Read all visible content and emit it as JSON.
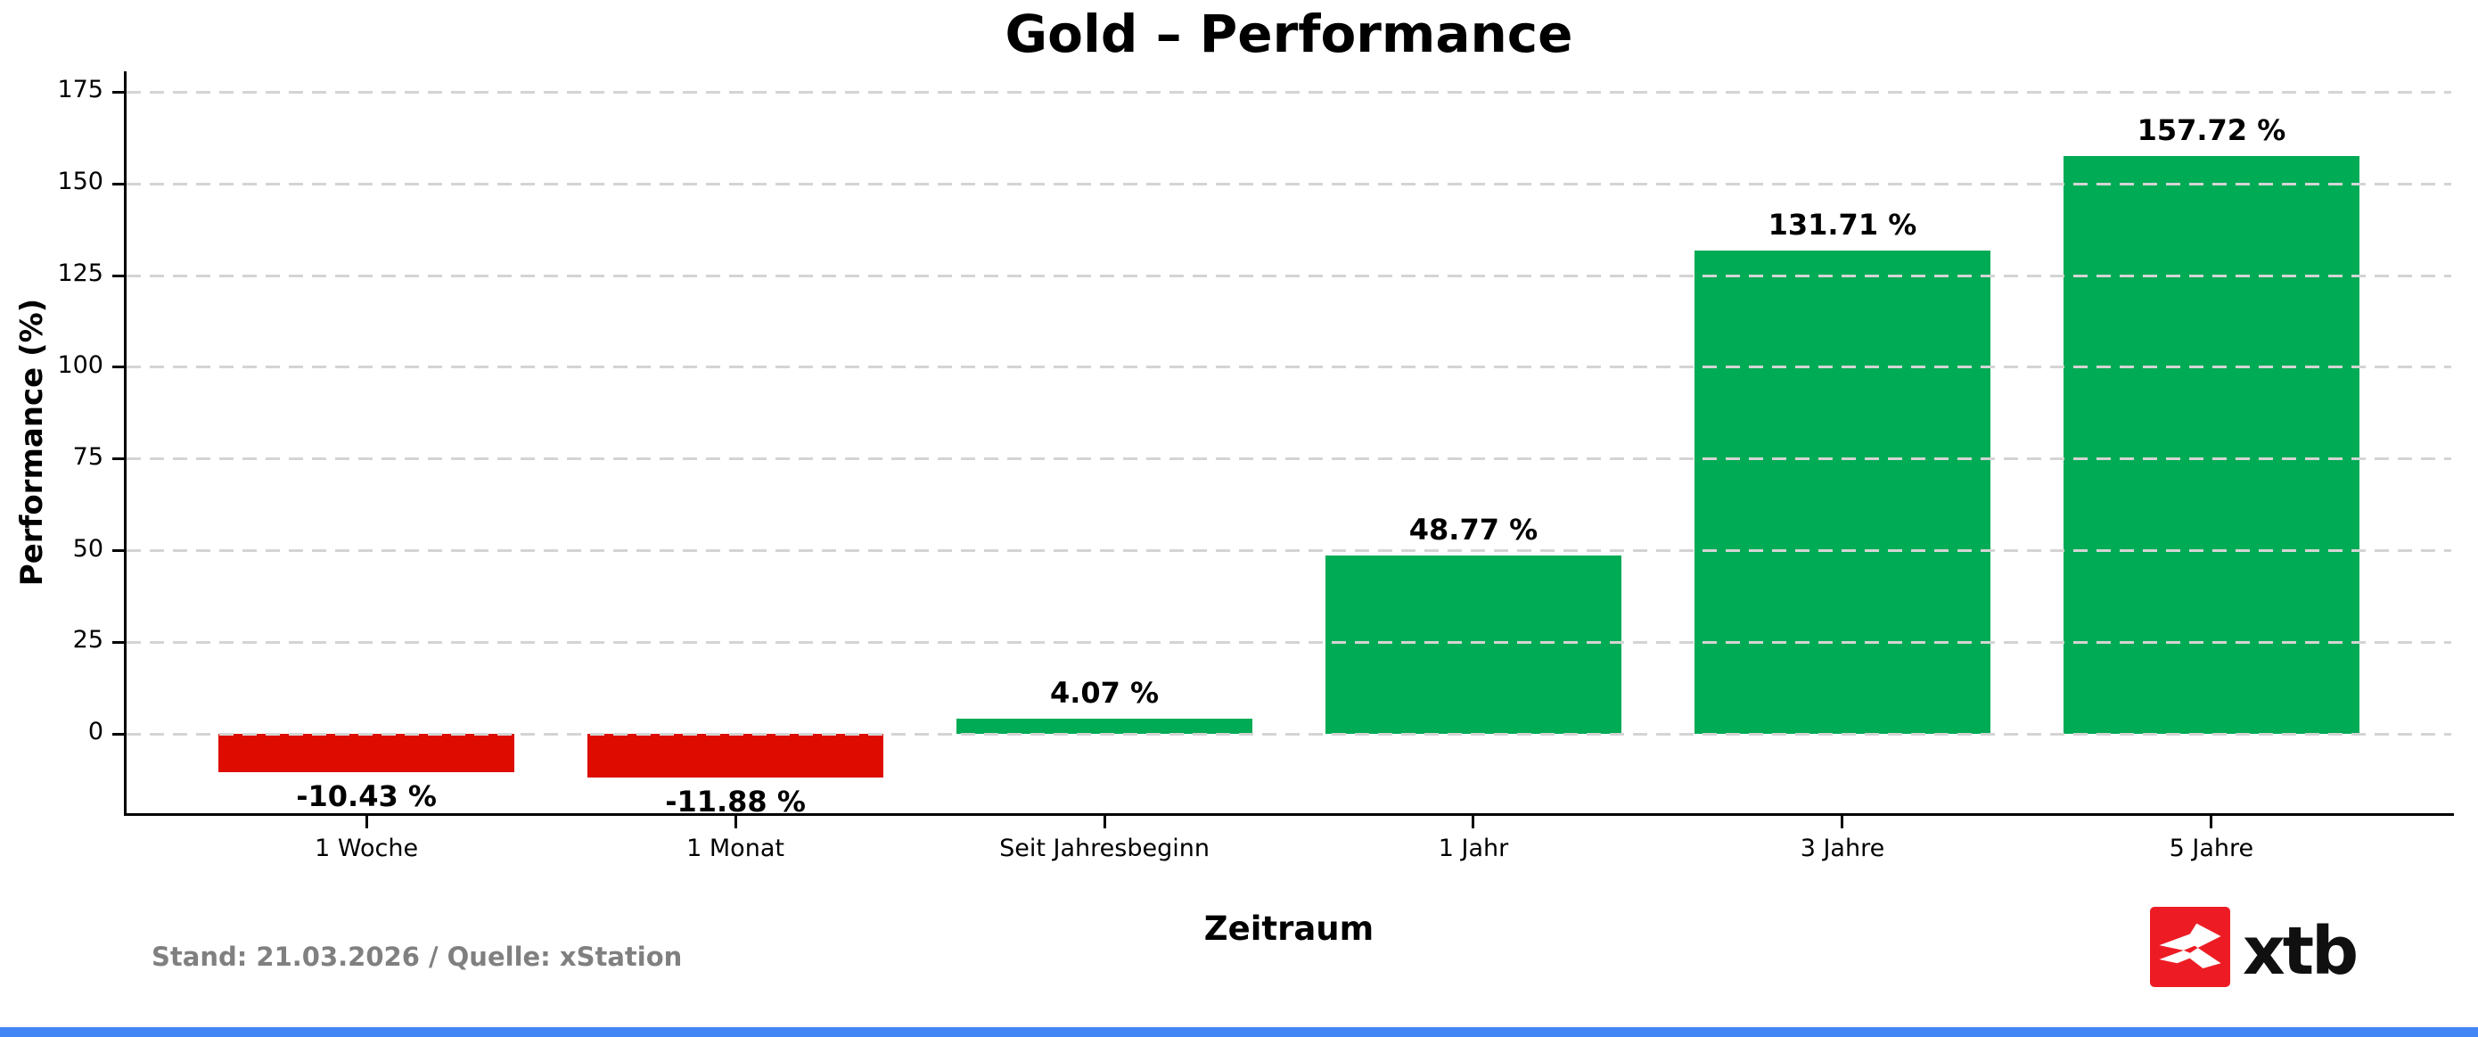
{
  "chart_data": {
    "type": "bar",
    "title": "Gold – Performance",
    "xlabel": "Zeitraum",
    "ylabel": "Performance (%)",
    "categories": [
      "1 Woche",
      "1 Monat",
      "Seit Jahresbeginn",
      "1 Jahr",
      "3 Jahre",
      "5 Jahre"
    ],
    "values": [
      -10.43,
      -11.88,
      4.07,
      48.77,
      131.71,
      157.72
    ],
    "value_labels": [
      "-10.43 %",
      "-11.88 %",
      "4.07 %",
      "48.77 %",
      "131.71 %",
      "157.72 %"
    ],
    "yticks": [
      0,
      25,
      50,
      75,
      100,
      125,
      150,
      175
    ],
    "ylim": [
      -21.6,
      180.7
    ],
    "grid": "horizontal dashed, drawn over bars",
    "legend": "none",
    "bar_colors": {
      "positive": "#00ab55",
      "negative": "#dd0b00"
    },
    "gridline_color": "#d4d4d4"
  },
  "footer": {
    "text": "Stand: 21.03.2026 / Quelle: xStation"
  },
  "logo": {
    "text": "xtb",
    "brand_red": "#ed1c24",
    "icon": "xtb-x-mark"
  },
  "decor": {
    "bottom_bar_color": "#4285f4"
  }
}
